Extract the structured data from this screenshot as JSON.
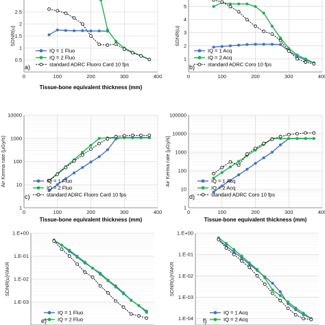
{
  "colors": {
    "iq1": "#4472c4",
    "iq2": "#21b14c",
    "ref": "#000000",
    "grid": "#d0d0d0"
  },
  "chart_data": [
    {
      "type": "line",
      "panel": "a)",
      "xlabel": "Tissue-bone equivalent thickness (mm)",
      "ylabel": "SDNR(u)",
      "xlim": [
        0,
        400
      ],
      "ylim": [
        0,
        3
      ],
      "log": false,
      "xticks": [
        0,
        100,
        200,
        300,
        400
      ],
      "xticklabels": [
        "0",
        "100",
        "200",
        "300",
        "400"
      ],
      "yticks": [
        0.5,
        1,
        1.5,
        2,
        2.5
      ],
      "yticklabels": [
        "0.5",
        "1",
        "1.5",
        "2",
        "2.5"
      ],
      "series": [
        {
          "name": "IQ = 1 Fluo",
          "key": "iq1",
          "x": [
            75,
            100,
            125,
            150,
            175,
            200,
            225,
            250
          ],
          "y": [
            1.55,
            1.75,
            1.73,
            1.72,
            1.72,
            1.71,
            1.71,
            1.7
          ]
        },
        {
          "name": "IQ = 2 Fluo",
          "key": "iq2",
          "x": [
            230,
            250,
            275,
            300,
            325,
            350,
            375
          ],
          "y": [
            3.0,
            1.75,
            1.28,
            1.0,
            0.82,
            0.68,
            0.52
          ]
        },
        {
          "name": "standard ADRC Fluoro Card 10 fps",
          "key": "ref",
          "x": [
            75,
            100,
            125,
            150,
            175,
            200,
            225,
            250,
            275,
            300,
            325,
            350,
            375
          ],
          "y": [
            2.62,
            2.55,
            2.45,
            2.25,
            2.0,
            1.5,
            1.15,
            1.12,
            1.16,
            0.95,
            0.8,
            0.67,
            0.52
          ]
        }
      ]
    },
    {
      "type": "line",
      "panel": "b)",
      "xlabel": "",
      "ylabel": "SDNR(u)",
      "xlim": [
        0,
        400
      ],
      "ylim": [
        0,
        5.5
      ],
      "log": false,
      "xticks": [
        0,
        100,
        200,
        300,
        400
      ],
      "xticklabels": [
        "0",
        "100",
        "200",
        "300",
        "400"
      ],
      "yticks": [
        1,
        2,
        3,
        4,
        5
      ],
      "yticklabels": [
        "1",
        "2",
        "3",
        "4",
        "5"
      ],
      "series": [
        {
          "name": "IQ = 1 Acq",
          "key": "iq1",
          "x": [
            75,
            100,
            125,
            150,
            175,
            200,
            225,
            250,
            275,
            300,
            325,
            350,
            375
          ],
          "y": [
            1.9,
            1.95,
            2.0,
            2.05,
            2.1,
            2.12,
            2.12,
            2.12,
            2.1,
            1.6,
            1.2,
            0.9,
            0.7
          ]
        },
        {
          "name": "IQ = 2 Acq",
          "key": "iq2",
          "x": [
            75,
            100,
            125,
            150,
            175,
            200,
            225,
            250,
            275,
            300,
            325,
            350,
            375
          ],
          "y": [
            5.0,
            5.3,
            5.2,
            5.2,
            5.2,
            5.0,
            4.5,
            3.5,
            2.6,
            1.8,
            1.3,
            1.0,
            0.7
          ]
        },
        {
          "name": "standard ADRC Coro 10 fps",
          "key": "ref",
          "x": [
            75,
            100,
            125,
            150,
            175,
            200,
            225,
            250,
            275,
            300,
            325,
            350,
            375
          ],
          "y": [
            5.5,
            5.35,
            5.0,
            4.6,
            4.0,
            3.5,
            3.1,
            2.9,
            2.4,
            1.6,
            1.0,
            0.75,
            0.62
          ]
        }
      ]
    },
    {
      "type": "line",
      "panel": "c)",
      "xlabel": "Tissue-bone equivalent thickness (mm)",
      "ylabel": "Air Kerma rate (µGy/s)",
      "xlim": [
        0,
        400
      ],
      "ylim": [
        1,
        10000
      ],
      "log": true,
      "xticks": [
        0,
        100,
        200,
        300,
        400
      ],
      "xticklabels": [
        "0",
        "100",
        "200",
        "300",
        "400"
      ],
      "yticks": [
        1,
        10,
        100,
        1000,
        10000
      ],
      "yticklabels": [
        "1",
        "10",
        "100",
        "1000",
        "10000"
      ],
      "series": [
        {
          "name": "IQ = 1 Fluo",
          "key": "iq1",
          "x": [
            75,
            100,
            125,
            150,
            175,
            200,
            225,
            250,
            275,
            300,
            325,
            350,
            375
          ],
          "y": [
            5.5,
            10,
            18,
            32,
            55,
            95,
            160,
            320,
            950,
            1100,
            1100,
            1100,
            1100
          ]
        },
        {
          "name": "IQ = 2 Fluo",
          "key": "iq2",
          "x": [
            75,
            100,
            125,
            150,
            175,
            200,
            225,
            250,
            275,
            300,
            325,
            350,
            375
          ],
          "y": [
            15,
            30,
            60,
            120,
            250,
            500,
            1000,
            1050,
            1050,
            1050,
            1050,
            1050,
            1050
          ]
        },
        {
          "name": "standard ADRC Fluoro Card 10 fps",
          "key": "ref",
          "x": [
            75,
            100,
            125,
            150,
            175,
            200,
            225,
            250,
            275,
            300,
            325,
            350,
            375
          ],
          "y": [
            15,
            28,
            55,
            105,
            190,
            340,
            600,
            950,
            1200,
            1300,
            1350,
            1350,
            1350
          ]
        }
      ]
    },
    {
      "type": "line",
      "panel": "d)",
      "xlabel": "Tissue-bone equivalent thickness (mm)",
      "ylabel": "Air Kerma rate [µGy/s]",
      "xlim": [
        0,
        400
      ],
      "ylim": [
        1,
        100000
      ],
      "log": true,
      "xticks": [
        0,
        100,
        200,
        300,
        400
      ],
      "xticklabels": [
        "0",
        "100",
        "200",
        "300",
        "400"
      ],
      "yticks": [
        1,
        10,
        100,
        1000,
        10000,
        100000
      ],
      "yticklabels": [
        "1",
        "10",
        "100",
        "1000",
        "10000",
        "100000"
      ],
      "series": [
        {
          "name": "IQ = 1 Acq",
          "key": "iq1",
          "x": [
            75,
            100,
            125,
            150,
            175,
            200,
            225,
            250,
            275,
            300,
            325,
            350,
            375
          ],
          "y": [
            7,
            15,
            30,
            60,
            120,
            250,
            500,
            1000,
            2500,
            5500,
            5500,
            5500,
            5500
          ]
        },
        {
          "name": "IQ = 2 Acq",
          "key": "iq2",
          "x": [
            75,
            100,
            125,
            150,
            175,
            200,
            225,
            250,
            275,
            300,
            325,
            350,
            375
          ],
          "y": [
            40,
            80,
            160,
            320,
            650,
            1300,
            2600,
            5500,
            5500,
            5500,
            5500,
            5500,
            5500
          ]
        },
        {
          "name": "standard ADRC Coro 10 fps",
          "key": "ref",
          "x": [
            75,
            100,
            125,
            150,
            175,
            200,
            225,
            250,
            275,
            300,
            325,
            350,
            375
          ],
          "y": [
            70,
            150,
            300,
            200,
            800,
            1600,
            3000,
            5000,
            7000,
            9000,
            10000,
            11000,
            11000
          ]
        }
      ]
    },
    {
      "type": "line",
      "panel": "e)",
      "xlabel": "",
      "ylabel": "SDNR(u)²/AKR",
      "xlim": [
        0,
        400
      ],
      "ylim": [
        0.0001,
        1
      ],
      "log": true,
      "xticks": [],
      "xticklabels": [],
      "yticks": [
        1,
        0.1,
        0.01,
        0.001
      ],
      "yticklabels": [
        "1.E+00",
        "1.E-01",
        "1.E-02",
        "1.E-03"
      ],
      "series": [
        {
          "name": "IQ = 1 Fluo",
          "key": "iq1",
          "x": [
            75,
            100,
            125,
            150,
            175,
            200,
            225,
            250,
            275,
            300,
            325,
            350,
            375
          ],
          "y": [
            0.45,
            0.3,
            0.16,
            0.09,
            0.05,
            0.03,
            0.018,
            0.009,
            0.005,
            0.0025,
            0.0012,
            0.0007,
            0.0004
          ]
        },
        {
          "name": "IQ = 2 Fluo",
          "key": "iq2",
          "x": [
            75,
            100,
            125,
            150,
            175,
            200,
            225,
            250,
            275,
            300,
            325,
            350,
            375
          ],
          "y": [
            0.5,
            0.3,
            0.18,
            0.1,
            0.055,
            0.03,
            0.016,
            0.0085,
            0.0045,
            0.0023,
            0.0012,
            0.0007,
            0.00035
          ]
        },
        {
          "name": "",
          "key": "ref",
          "x": [
            75,
            100,
            125,
            150,
            175,
            200,
            225,
            250,
            275,
            300,
            325,
            350,
            375
          ],
          "y": [
            0.45,
            0.2,
            0.1,
            0.045,
            0.02,
            0.012,
            0.005,
            0.0025,
            0.0011,
            0.0006,
            0.0003,
            0.00025,
            0.0002
          ]
        }
      ]
    },
    {
      "type": "line",
      "panel": "f)",
      "xlabel": "",
      "ylabel": "SDNR(u)²/AKR",
      "xlim": [
        0,
        400
      ],
      "ylim": [
        5e-05,
        1
      ],
      "log": true,
      "xticks": [],
      "xticklabels": [],
      "yticks": [
        1,
        0.1,
        0.01,
        0.001,
        0.0001
      ],
      "yticklabels": [
        "1.E+00",
        "1.E-01",
        "1.E-02",
        "1.E-03",
        "1.E-04"
      ],
      "series": [
        {
          "name": "IQ = 1 Acq",
          "key": "iq1",
          "x": [
            75,
            100,
            125,
            150,
            175,
            200,
            225,
            250,
            275,
            300,
            325,
            350,
            375
          ],
          "y": [
            0.5,
            0.25,
            0.13,
            0.07,
            0.035,
            0.018,
            0.009,
            0.0045,
            0.0018,
            0.0005,
            0.00026,
            0.00015,
            0.0001
          ]
        },
        {
          "name": "IQ = 2 Acq",
          "key": "iq2",
          "x": [
            75,
            100,
            125,
            150,
            175,
            200,
            225,
            250,
            275,
            300,
            325,
            350,
            375
          ],
          "y": [
            0.6,
            0.33,
            0.17,
            0.085,
            0.04,
            0.02,
            0.008,
            0.0022,
            0.0012,
            0.0006,
            0.00031,
            0.00018,
            0.0001
          ]
        },
        {
          "name": "",
          "key": "ref",
          "x": [
            75,
            100,
            125,
            150,
            175,
            200,
            225,
            250,
            275,
            300,
            325,
            350,
            375
          ],
          "y": [
            0.5,
            0.2,
            0.1,
            0.05,
            0.025,
            0.01,
            0.004,
            0.0015,
            0.0007,
            0.0003,
            0.00015,
            0.0001,
            9e-05
          ]
        }
      ]
    }
  ]
}
